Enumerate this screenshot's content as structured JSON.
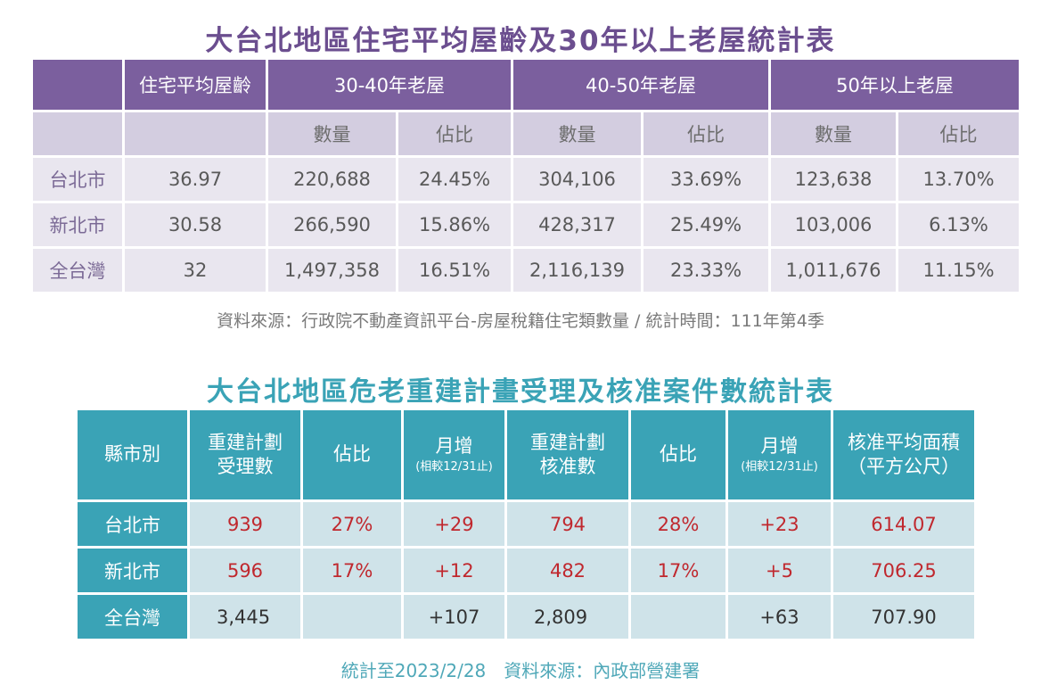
{
  "table1": {
    "title": "大台北地區住宅平均屋齡及30年以上老屋統計表",
    "headers": [
      "住宅平均屋齡",
      "30-40年老屋",
      "40-50年老屋",
      "50年以上老屋"
    ],
    "subheaders": [
      "數量",
      "佔比",
      "數量",
      "佔比",
      "數量",
      "佔比"
    ],
    "rows": [
      {
        "city": "台北市",
        "avg_age": "36.97",
        "c1": "220,688",
        "p1": "24.45%",
        "c2": "304,106",
        "p2": "33.69%",
        "c3": "123,638",
        "p3": "13.70%"
      },
      {
        "city": "新北市",
        "avg_age": "30.58",
        "c1": "266,590",
        "p1": "15.86%",
        "c2": "428,317",
        "p2": "25.49%",
        "c3": "103,006",
        "p3": "6.13%"
      },
      {
        "city": "全台灣",
        "avg_age": "32",
        "c1": "1,497,358",
        "p1": "16.51%",
        "c2": "2,116,139",
        "p2": "23.33%",
        "c3": "1,011,676",
        "p3": "11.15%"
      }
    ],
    "source": "資料來源：行政院不動產資訊平台-房屋稅籍住宅類數量 / 統計時間：111年第4季"
  },
  "table2": {
    "title": "大台北地區危老重建計畫受理及核准案件數統計表",
    "headers": {
      "city": "縣市別",
      "received_l1": "重建計劃",
      "received_l2": "受理數",
      "ratio1": "佔比",
      "monthly1_l1": "月增",
      "monthly1_l2": "(相較12/31止)",
      "approved_l1": "重建計劃",
      "approved_l2": "核准數",
      "ratio2": "佔比",
      "monthly2_l1": "月增",
      "monthly2_l2": "(相較12/31止)",
      "area_l1": "核准平均面積",
      "area_l2": "（平方公尺）"
    },
    "rows": [
      {
        "city": "台北市",
        "received": "939",
        "ratio1": "27%",
        "monthly1": "+29",
        "approved": "794",
        "ratio2": "28%",
        "monthly2": "+23",
        "area": "614.07"
      },
      {
        "city": "新北市",
        "received": "596",
        "ratio1": "17%",
        "monthly1": "+12",
        "approved": "482",
        "ratio2": "17%",
        "monthly2": "+5",
        "area": "706.25"
      },
      {
        "city": "全台灣",
        "received": "3,445",
        "ratio1": "",
        "monthly1": "+107",
        "approved": "2,809",
        "ratio2": "",
        "monthly2": "+63",
        "area": "707.90"
      }
    ],
    "source": "統計至2023/2/28　資料來源：內政部營建署"
  }
}
